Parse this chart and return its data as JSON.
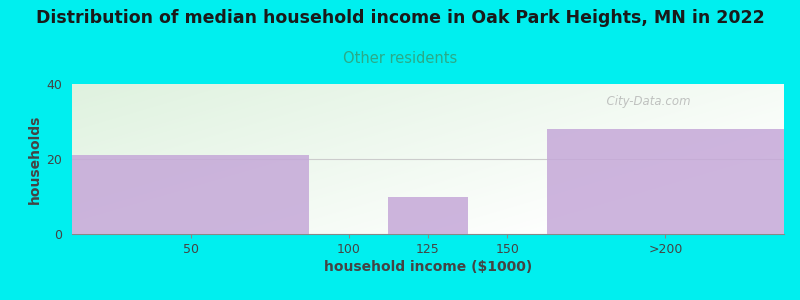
{
  "title": "Distribution of median household income in Oak Park Heights, MN in 2022",
  "subtitle": "Other residents",
  "xlabel": "household income ($1000)",
  "ylabel": "households",
  "bar_lefts": [
    0,
    75,
    100,
    125,
    150
  ],
  "bar_widths": [
    75,
    25,
    25,
    25,
    75
  ],
  "bar_heights": [
    21,
    0,
    10,
    0,
    28
  ],
  "xtick_positions": [
    37.5,
    87.5,
    112.5,
    137.5,
    187.5
  ],
  "xtick_labels": [
    "50",
    "100",
    "125",
    "150",
    ">200"
  ],
  "xlim": [
    0,
    225
  ],
  "ylim": [
    0,
    40
  ],
  "yticks": [
    0,
    20,
    40
  ],
  "bar_color": "#c5a8d8",
  "background_outer": "#00efef",
  "background_inner_topleft": "#dff2df",
  "background_inner_white": "#ffffff",
  "title_color": "#1a1a1a",
  "subtitle_color": "#2aaa88",
  "xlabel_color": "#444444",
  "ylabel_color": "#444444",
  "tick_color": "#444444",
  "watermark": "  City-Data.com",
  "title_fontsize": 12.5,
  "subtitle_fontsize": 10.5,
  "axis_label_fontsize": 10,
  "tick_fontsize": 9
}
